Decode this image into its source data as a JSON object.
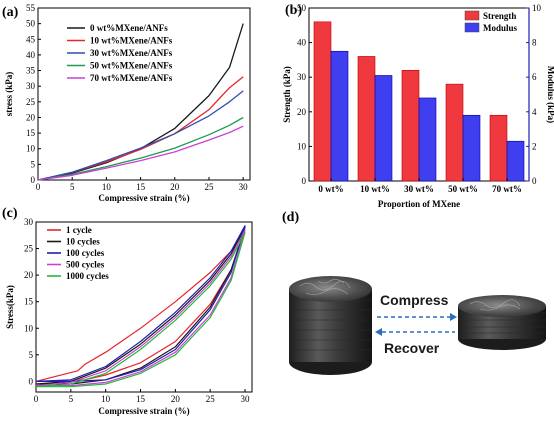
{
  "panels": {
    "a": "(a)",
    "b": "(b)",
    "c": "(c)",
    "d": "(d)"
  },
  "colors": {
    "black": "#1a1a1a",
    "red": "#e8232a",
    "blue": "#2f4fb3",
    "green": "#1f9a52",
    "magenta": "#cc3fd6",
    "bar_red": "#f0393f",
    "bar_blue": "#3f3ff0",
    "purple_accent": "#6a3fb8"
  },
  "chart_data": [
    {
      "id": "a",
      "type": "line",
      "xlabel": "Compressive strain (%)",
      "ylabel": "stress (kPa)",
      "xlim": [
        0,
        31
      ],
      "ylim": [
        0,
        55
      ],
      "xticks": [
        0,
        5,
        10,
        15,
        20,
        25,
        30
      ],
      "yticks": [
        0,
        5,
        10,
        15,
        20,
        25,
        30,
        35,
        40,
        45,
        50,
        55
      ],
      "legend_position": "top-left",
      "series": [
        {
          "name": "0 wt%MXene/ANFs",
          "color": "#1a1a1a",
          "x": [
            0,
            5,
            10,
            15,
            20,
            25,
            28,
            30
          ],
          "y": [
            0,
            2.2,
            5.5,
            10,
            16.5,
            27,
            36,
            50
          ]
        },
        {
          "name": "10 wt%MXene/ANFs",
          "color": "#e8232a",
          "x": [
            0,
            5,
            10,
            15,
            20,
            25,
            28,
            30
          ],
          "y": [
            0,
            2.5,
            5.8,
            9.8,
            14.8,
            22.5,
            29.5,
            33
          ]
        },
        {
          "name": "30 wt%MXene/ANFs",
          "color": "#2f4fb3",
          "x": [
            0,
            5,
            10,
            15,
            20,
            25,
            28,
            30
          ],
          "y": [
            0,
            2.5,
            6.2,
            10.2,
            14.8,
            20.5,
            25,
            28.5
          ]
        },
        {
          "name": "50 wt%MXene/ANFs",
          "color": "#1f9a52",
          "x": [
            0,
            5,
            10,
            15,
            20,
            25,
            28,
            30
          ],
          "y": [
            0,
            1.8,
            4.3,
            7,
            10.2,
            14.5,
            17.5,
            20
          ]
        },
        {
          "name": "70 wt%MXene/ANFs",
          "color": "#cc3fd6",
          "x": [
            0,
            5,
            10,
            15,
            20,
            25,
            28,
            30
          ],
          "y": [
            0,
            1.5,
            3.8,
            6.2,
            9,
            12.8,
            15.2,
            17.2
          ]
        }
      ]
    },
    {
      "id": "b",
      "type": "bar",
      "xlabel": "Proportion of MXene",
      "ylabel": "Strength (kPa)",
      "ylabel_right": "Modulus (kPa)",
      "categories": [
        "0 wt%",
        "10 wt%",
        "30 wt%",
        "50 wt%",
        "70 wt%"
      ],
      "ylim": [
        0,
        50
      ],
      "ylim_right": [
        0,
        10
      ],
      "yticks": [
        0,
        10,
        20,
        30,
        40,
        50
      ],
      "yticks_right": [
        0,
        2,
        4,
        6,
        8,
        10
      ],
      "legend_position": "top-right",
      "series": [
        {
          "name": "Strength",
          "color": "#f0393f",
          "axis": "left",
          "values": [
            46,
            36,
            32,
            28,
            19
          ]
        },
        {
          "name": "Modulus",
          "color": "#3f3ff0",
          "axis": "right",
          "values": [
            7.5,
            6.1,
            4.8,
            3.8,
            2.3
          ]
        }
      ]
    },
    {
      "id": "c",
      "type": "line",
      "xlabel": "Compressive strain (%)",
      "ylabel": "Stress(kPa)",
      "xlim": [
        0,
        31
      ],
      "ylim": [
        -2,
        30
      ],
      "xticks": [
        0,
        5,
        10,
        15,
        20,
        25,
        30
      ],
      "yticks": [
        0,
        5,
        10,
        15,
        20,
        25,
        30
      ],
      "legend_position": "top-left",
      "series": [
        {
          "name": "1 cycle",
          "color": "#e8232a",
          "x": [
            0,
            3,
            6,
            7,
            10,
            15,
            20,
            25,
            28,
            30,
            30,
            28,
            25,
            20,
            15,
            10,
            7,
            5,
            3,
            0
          ],
          "y": [
            0,
            1,
            2,
            3.2,
            5.5,
            10,
            15,
            20.5,
            24.5,
            28.5,
            28.5,
            21,
            14.5,
            7.5,
            3.5,
            1.2,
            0.3,
            0,
            0,
            0
          ]
        },
        {
          "name": "10 cycles",
          "color": "#1a1a1a",
          "x": [
            0,
            5,
            10,
            15,
            20,
            25,
            28,
            30,
            30,
            28,
            25,
            20,
            15,
            10,
            5,
            0
          ],
          "y": [
            -0.5,
            0,
            2.5,
            7,
            12.5,
            19,
            24,
            29,
            29,
            21,
            14,
            6.5,
            2.5,
            0.3,
            -0.5,
            -0.5
          ]
        },
        {
          "name": "100 cycles",
          "color": "#1f1fb0",
          "x": [
            0,
            5,
            10,
            15,
            20,
            25,
            28,
            30,
            30,
            28,
            25,
            20,
            15,
            10,
            5,
            0
          ],
          "y": [
            0,
            0.3,
            2.8,
            7.5,
            13,
            19.5,
            24.5,
            29.3,
            29.3,
            20.5,
            13.5,
            6,
            2.2,
            0.3,
            0,
            0
          ]
        },
        {
          "name": "500 cycles",
          "color": "#cc3fd6",
          "x": [
            0,
            5,
            10,
            15,
            20,
            25,
            28,
            30,
            30,
            28,
            25,
            20,
            15,
            10,
            5,
            0
          ],
          "y": [
            -0.8,
            -0.2,
            2,
            6.5,
            12,
            18.5,
            23.5,
            28.5,
            28.5,
            19.5,
            12.5,
            5.5,
            1.8,
            -0.2,
            -0.8,
            -0.8
          ]
        },
        {
          "name": "1000 cycles",
          "color": "#22bb33",
          "x": [
            0,
            5,
            10,
            15,
            20,
            25,
            28,
            30,
            30,
            28,
            25,
            20,
            15,
            10,
            5,
            0
          ],
          "y": [
            -1,
            -0.5,
            1.5,
            6,
            11.5,
            18,
            23,
            28,
            28,
            19,
            12,
            5,
            1.5,
            -0.5,
            -1,
            -1
          ]
        }
      ]
    }
  ],
  "diagram_d": {
    "compress": "Compress",
    "recover": "Recover"
  }
}
